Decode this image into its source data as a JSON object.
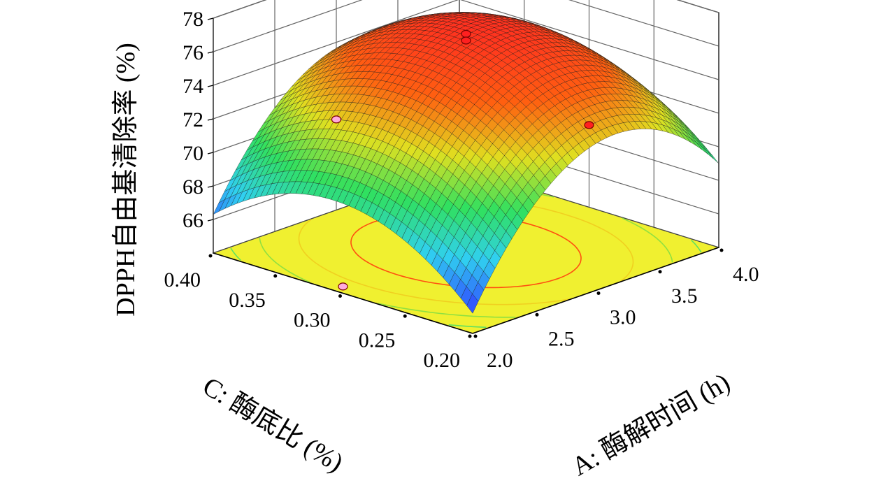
{
  "chart_data": {
    "type": "surface",
    "zlabel": "DPPH自由基清除率 (%)",
    "xlabel": "A: 酶解时间 (h)",
    "ylabel": "C: 酶底比 (%)",
    "x_ticks": [
      "2.0",
      "2.5",
      "3.0",
      "3.5",
      "4.0"
    ],
    "y_ticks": [
      "0.20",
      "0.25",
      "0.30",
      "0.35",
      "0.40"
    ],
    "z_ticks": [
      "66",
      "68",
      "70",
      "72",
      "74",
      "76",
      "78"
    ],
    "xlim": [
      2.0,
      4.0
    ],
    "ylim": [
      0.2,
      0.4
    ],
    "zlim": [
      64,
      78
    ],
    "surface_peak": {
      "A": 3.0,
      "C": 0.3,
      "z": 76.8
    },
    "surface_corners": [
      {
        "A": 2.0,
        "C": 0.2,
        "z": 65.8
      },
      {
        "A": 4.0,
        "C": 0.2,
        "z": 68.5
      },
      {
        "A": 2.0,
        "C": 0.4,
        "z": 69.2
      },
      {
        "A": 4.0,
        "C": 0.4,
        "z": 71.9
      }
    ],
    "design_points": [
      {
        "A": 3.0,
        "C": 0.3,
        "z": 76.9,
        "color": "#ff2020"
      },
      {
        "A": 3.0,
        "C": 0.3,
        "z": 76.5,
        "color": "#ff2020"
      },
      {
        "A": 4.0,
        "C": 0.3,
        "z": 68.9,
        "color": "#ff2020"
      },
      {
        "A": 3.0,
        "C": 0.4,
        "z": 69.4,
        "color": "#ffaadd"
      },
      {
        "A": 2.0,
        "C": 0.3,
        "z": 64.4,
        "color": "#ffaadd"
      }
    ],
    "floor_color": "#f0f030",
    "contours": [
      75,
      73,
      71,
      69,
      67
    ],
    "colormap": [
      "#3050ff",
      "#30d0f0",
      "#30e060",
      "#e0e020",
      "#ff6010",
      "#ff3020"
    ]
  }
}
